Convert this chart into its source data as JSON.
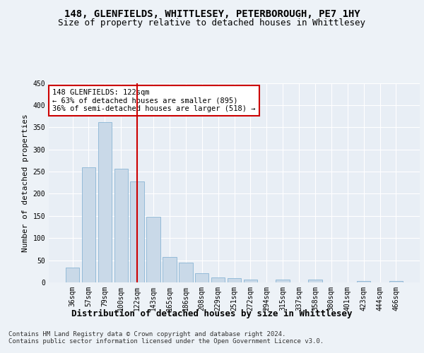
{
  "title1": "148, GLENFIELDS, WHITTLESEY, PETERBOROUGH, PE7 1HY",
  "title2": "Size of property relative to detached houses in Whittlesey",
  "xlabel": "Distribution of detached houses by size in Whittlesey",
  "ylabel": "Number of detached properties",
  "categories": [
    "36sqm",
    "57sqm",
    "79sqm",
    "100sqm",
    "122sqm",
    "143sqm",
    "165sqm",
    "186sqm",
    "208sqm",
    "229sqm",
    "251sqm",
    "272sqm",
    "294sqm",
    "315sqm",
    "337sqm",
    "358sqm",
    "380sqm",
    "401sqm",
    "423sqm",
    "444sqm",
    "466sqm"
  ],
  "values": [
    33,
    260,
    362,
    257,
    227,
    148,
    57,
    45,
    20,
    11,
    10,
    7,
    0,
    6,
    0,
    6,
    0,
    0,
    3,
    0,
    3
  ],
  "bar_color": "#c9d9e8",
  "bar_edge_color": "#7aabcf",
  "vline_x_index": 4,
  "vline_color": "#cc0000",
  "annotation_text": "148 GLENFIELDS: 122sqm\n← 63% of detached houses are smaller (895)\n36% of semi-detached houses are larger (518) →",
  "annotation_box_color": "#ffffff",
  "annotation_box_edge": "#cc0000",
  "ylim": [
    0,
    450
  ],
  "yticks": [
    0,
    50,
    100,
    150,
    200,
    250,
    300,
    350,
    400,
    450
  ],
  "footer": "Contains HM Land Registry data © Crown copyright and database right 2024.\nContains public sector information licensed under the Open Government Licence v3.0.",
  "bg_color": "#edf2f7",
  "plot_bg_color": "#e8eef5",
  "grid_color": "#ffffff",
  "title1_fontsize": 10,
  "title2_fontsize": 9,
  "xlabel_fontsize": 9,
  "ylabel_fontsize": 8,
  "tick_fontsize": 7,
  "footer_fontsize": 6.5,
  "annot_fontsize": 7.5
}
